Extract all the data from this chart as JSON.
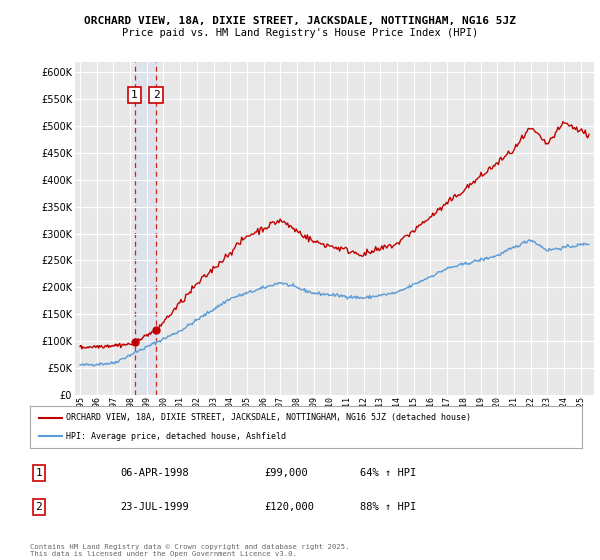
{
  "title1": "ORCHARD VIEW, 18A, DIXIE STREET, JACKSDALE, NOTTINGHAM, NG16 5JZ",
  "title2": "Price paid vs. HM Land Registry's House Price Index (HPI)",
  "legend_line1": "ORCHARD VIEW, 18A, DIXIE STREET, JACKSDALE, NOTTINGHAM, NG16 5JZ (detached house)",
  "legend_line2": "HPI: Average price, detached house, Ashfield",
  "footnote": "Contains HM Land Registry data © Crown copyright and database right 2025.\nThis data is licensed under the Open Government Licence v3.0.",
  "sale1_label": "1",
  "sale1_date": "06-APR-1998",
  "sale1_price": "£99,000",
  "sale1_hpi": "64% ↑ HPI",
  "sale1_year": 1998.27,
  "sale1_value": 99000,
  "sale2_label": "2",
  "sale2_date": "23-JUL-1999",
  "sale2_price": "£120,000",
  "sale2_hpi": "88% ↑ HPI",
  "sale2_year": 1999.56,
  "sale2_value": 120000,
  "hpi_color": "#5b9bd5",
  "price_color": "#c00000",
  "ylim_min": 0,
  "ylim_max": 620000,
  "background_color": "#ffffff",
  "plot_bg_color": "#e8e8e8"
}
